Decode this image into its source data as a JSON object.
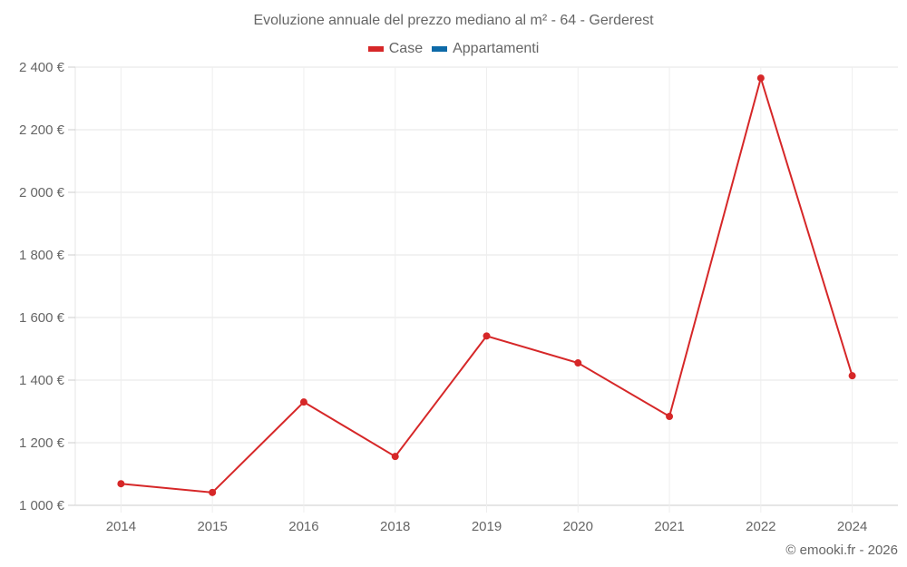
{
  "title": "Evoluzione annuale del prezzo mediano al m² - 64 - Gerderest",
  "legend": [
    {
      "label": "Case",
      "color": "#d62728"
    },
    {
      "label": "Appartamenti",
      "color": "#0d6aa8"
    }
  ],
  "credit": "© emooki.fr - 2026",
  "chart_data": {
    "type": "line",
    "title": "Evoluzione annuale del prezzo mediano al m² - 64 - Gerderest",
    "xlabel": "",
    "ylabel": "",
    "categories": [
      "2014",
      "2015",
      "2016",
      "2018",
      "2019",
      "2020",
      "2021",
      "2022",
      "2024"
    ],
    "series": [
      {
        "name": "Case",
        "color": "#d62728",
        "values": [
          1069,
          1041,
          1330,
          1156,
          1541,
          1455,
          1284,
          2365,
          1414
        ]
      },
      {
        "name": "Appartamenti",
        "color": "#0d6aa8",
        "values": []
      }
    ],
    "ylim": [
      1000,
      2400
    ],
    "yticks": [
      1000,
      1200,
      1400,
      1600,
      1800,
      2000,
      2200,
      2400
    ],
    "ytick_labels": [
      "1 000 €",
      "1 200 €",
      "1 400 €",
      "1 600 €",
      "1 800 €",
      "2 000 €",
      "2 200 €",
      "2 400 €"
    ],
    "grid": true,
    "legend_position": "top"
  }
}
